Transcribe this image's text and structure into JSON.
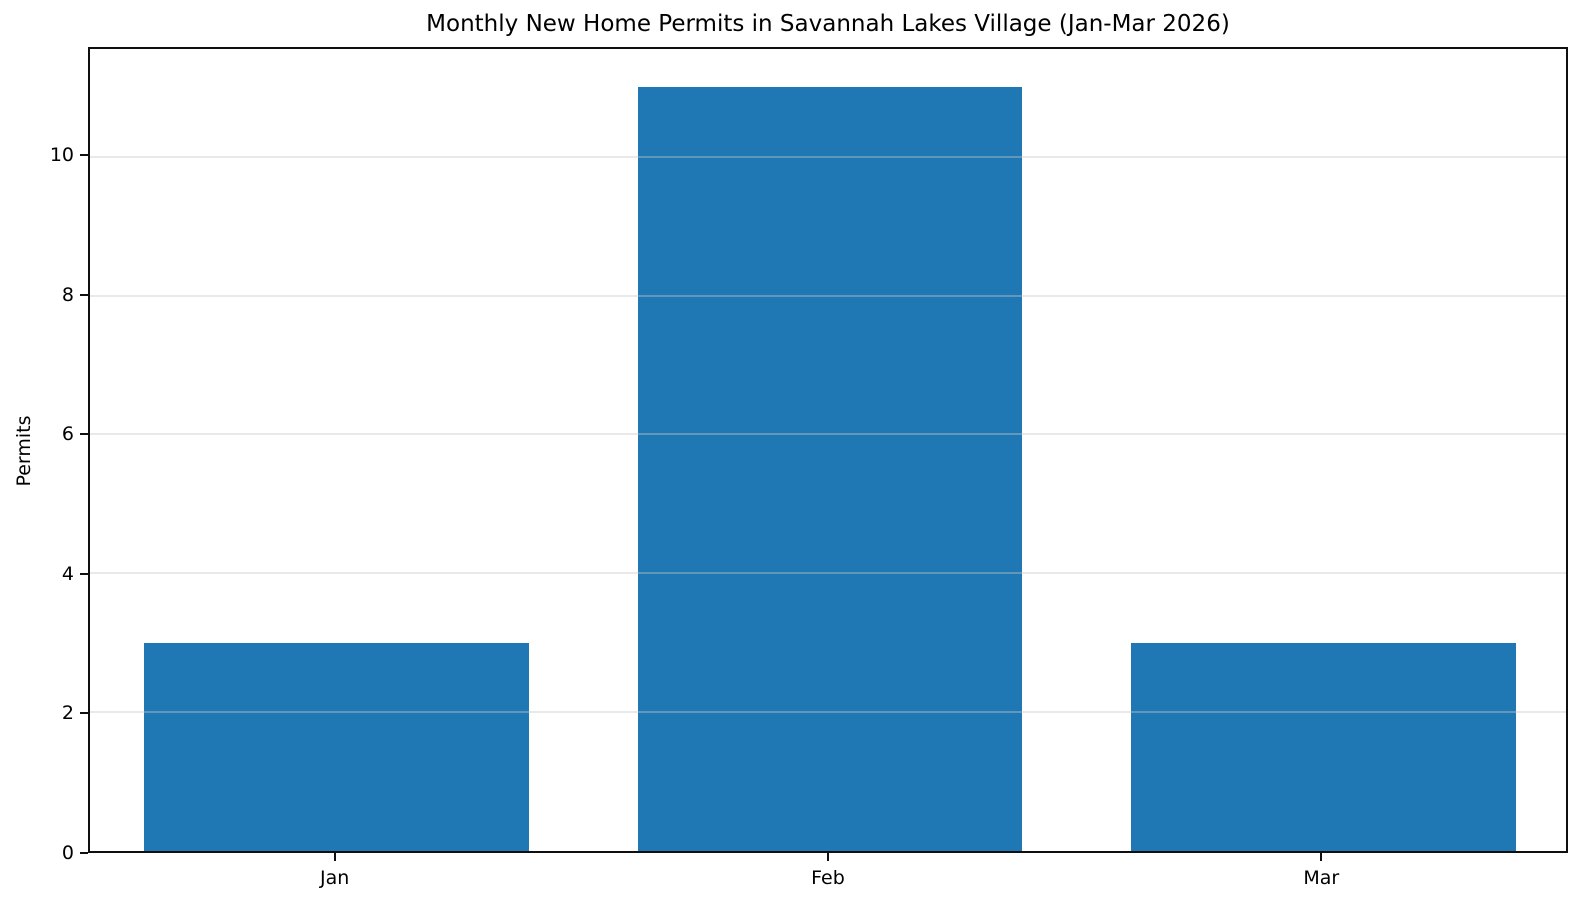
{
  "chart_data": {
    "type": "bar",
    "title": "Monthly New Home Permits in Savannah Lakes Village (Jan-Mar 2026)",
    "categories": [
      "Jan",
      "Feb",
      "Mar"
    ],
    "values": [
      3,
      11,
      3
    ],
    "xlabel": "",
    "ylabel": "Permits",
    "ylim": [
      0,
      11.55
    ],
    "yticks": [
      0,
      2,
      4,
      6,
      8,
      10
    ],
    "bar_color": "#1f77b4",
    "grid": "horizontal-only",
    "legend": "none",
    "background_color": "#ffffff"
  }
}
